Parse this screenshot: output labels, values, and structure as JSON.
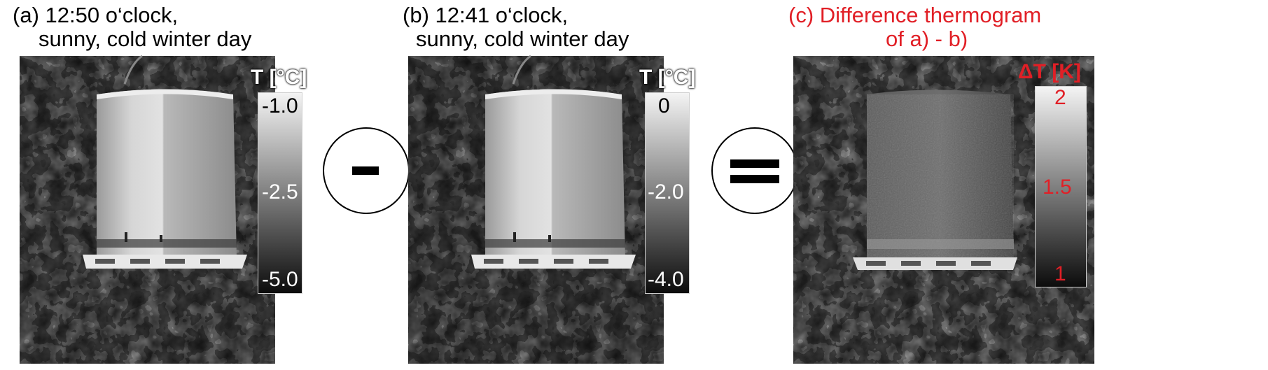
{
  "panel_a": {
    "caption_line1": "(a) 12:50 o‘clock,",
    "caption_line2": "sunny, cold winter day",
    "scale_title": "T [°C]",
    "ticks": [
      "-1.0",
      "-2.5",
      "-5.0"
    ]
  },
  "operator_minus": "-",
  "panel_b": {
    "caption_line1": "(b) 12:41 o‘clock,",
    "caption_line2": "sunny, cold winter day",
    "scale_title": "T [°C]",
    "ticks": [
      "0",
      "-2.0",
      "-4.0"
    ]
  },
  "operator_equals": "=",
  "panel_c": {
    "caption_line1": "(c) Difference thermogram",
    "caption_line2": "of a) - b)",
    "scale_title": "ΔT [K]",
    "ticks": [
      "2",
      "1.5",
      "1"
    ]
  },
  "colors": {
    "caption_red": "#e11f26",
    "background": "#ffffff",
    "thermogram_dark": "#141414"
  }
}
